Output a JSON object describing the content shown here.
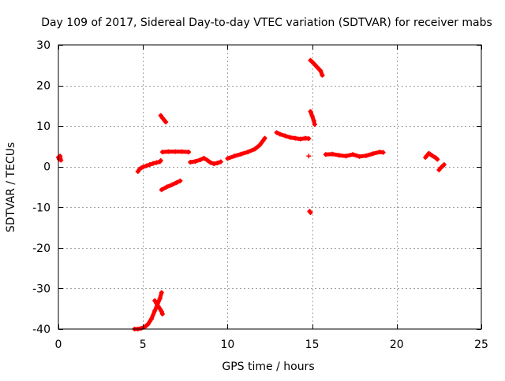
{
  "chart_data": {
    "type": "scatter",
    "title": "Day 109 of 2017, Sidereal Day-to-day VTEC variation (SDTVAR) for receiver mabs",
    "xlabel": "GPS time / hours",
    "ylabel": "SDTVAR / TECUs",
    "xlim": [
      0,
      25
    ],
    "ylim": [
      -40,
      30
    ],
    "xticks": [
      0,
      5,
      10,
      15,
      20,
      25
    ],
    "yticks": [
      -40,
      -30,
      -20,
      -10,
      0,
      10,
      20,
      30
    ],
    "grid": true,
    "marker": "+",
    "colors": {
      "series": "#ff0000",
      "axis": "#000000",
      "grid": "#a0a0a0"
    },
    "segments": [
      {
        "points": [
          [
            0.0,
            2.3
          ],
          [
            0.05,
            1.8
          ],
          [
            0.1,
            2.6
          ],
          [
            0.15,
            1.6
          ]
        ]
      },
      {
        "points": [
          [
            4.7,
            -1.2
          ],
          [
            4.8,
            -0.6
          ],
          [
            4.9,
            -0.3
          ],
          [
            5.0,
            -0.1
          ],
          [
            5.2,
            0.2
          ],
          [
            5.4,
            0.5
          ],
          [
            5.6,
            0.8
          ],
          [
            5.8,
            1.0
          ],
          [
            6.0,
            1.2
          ],
          [
            6.05,
            1.5
          ]
        ]
      },
      {
        "points": [
          [
            4.5,
            -40.0
          ],
          [
            4.7,
            -40.0
          ],
          [
            4.9,
            -39.8
          ],
          [
            5.1,
            -39.5
          ],
          [
            5.3,
            -38.8
          ],
          [
            5.5,
            -37.5
          ],
          [
            5.7,
            -35.5
          ],
          [
            5.85,
            -34.0
          ],
          [
            6.0,
            -32.5
          ],
          [
            6.1,
            -31.0
          ]
        ]
      },
      {
        "points": [
          [
            5.7,
            -33.0
          ],
          [
            5.8,
            -33.7
          ],
          [
            5.9,
            -34.4
          ],
          [
            6.0,
            -35.0
          ],
          [
            6.1,
            -35.7
          ],
          [
            6.15,
            -36.3
          ]
        ]
      },
      {
        "points": [
          [
            6.05,
            12.6
          ],
          [
            6.15,
            12.0
          ],
          [
            6.25,
            11.5
          ],
          [
            6.35,
            11.0
          ]
        ]
      },
      {
        "points": [
          [
            6.15,
            3.6
          ],
          [
            6.5,
            3.7
          ],
          [
            6.9,
            3.7
          ],
          [
            7.3,
            3.7
          ],
          [
            7.7,
            3.6
          ]
        ]
      },
      {
        "points": [
          [
            6.1,
            -5.7
          ],
          [
            6.4,
            -5.0
          ],
          [
            6.7,
            -4.5
          ],
          [
            7.0,
            -3.9
          ],
          [
            7.2,
            -3.5
          ]
        ]
      },
      {
        "points": [
          [
            7.8,
            1.1
          ],
          [
            8.1,
            1.3
          ],
          [
            8.4,
            1.7
          ],
          [
            8.6,
            2.1
          ],
          [
            8.8,
            1.6
          ],
          [
            9.0,
            1.0
          ],
          [
            9.2,
            0.7
          ],
          [
            9.4,
            0.9
          ],
          [
            9.6,
            1.2
          ]
        ]
      },
      {
        "points": [
          [
            10.0,
            2.0
          ],
          [
            10.4,
            2.6
          ],
          [
            10.8,
            3.1
          ],
          [
            11.2,
            3.6
          ],
          [
            11.6,
            4.3
          ],
          [
            11.9,
            5.3
          ],
          [
            12.1,
            6.4
          ],
          [
            12.2,
            7.0
          ]
        ]
      },
      {
        "points": [
          [
            12.9,
            8.4
          ],
          [
            13.1,
            8.0
          ],
          [
            13.4,
            7.6
          ],
          [
            13.7,
            7.2
          ],
          [
            14.0,
            7.0
          ],
          [
            14.3,
            6.8
          ],
          [
            14.6,
            7.0
          ],
          [
            14.8,
            6.9
          ]
        ]
      },
      {
        "points": [
          [
            14.8,
            2.6
          ]
        ]
      },
      {
        "points": [
          [
            14.85,
            -11.0
          ],
          [
            14.9,
            -11.3
          ]
        ]
      },
      {
        "points": [
          [
            14.9,
            13.6
          ],
          [
            15.0,
            12.5
          ],
          [
            15.1,
            11.3
          ],
          [
            15.15,
            10.4
          ]
        ]
      },
      {
        "points": [
          [
            14.9,
            26.2
          ],
          [
            15.1,
            25.4
          ],
          [
            15.3,
            24.5
          ],
          [
            15.5,
            23.6
          ],
          [
            15.6,
            22.5
          ]
        ]
      },
      {
        "points": [
          [
            15.8,
            3.0
          ],
          [
            16.2,
            3.1
          ],
          [
            16.6,
            2.8
          ],
          [
            17.0,
            2.6
          ],
          [
            17.4,
            3.0
          ],
          [
            17.8,
            2.5
          ],
          [
            18.2,
            2.7
          ],
          [
            18.6,
            3.2
          ],
          [
            19.0,
            3.6
          ],
          [
            19.2,
            3.5
          ]
        ]
      },
      {
        "points": [
          [
            21.7,
            2.3
          ],
          [
            21.9,
            3.3
          ],
          [
            22.1,
            2.7
          ],
          [
            22.3,
            2.2
          ],
          [
            22.4,
            1.8
          ]
        ]
      },
      {
        "points": [
          [
            22.5,
            -0.8
          ],
          [
            22.6,
            -0.3
          ],
          [
            22.7,
            0.1
          ],
          [
            22.8,
            0.5
          ]
        ]
      }
    ]
  }
}
